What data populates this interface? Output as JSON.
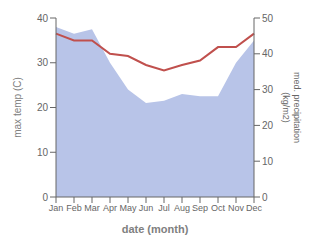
{
  "chart_data": {
    "type": "line",
    "categories": [
      "Jan",
      "Feb",
      "Mar",
      "Apr",
      "May",
      "Jun",
      "Jul",
      "Aug",
      "Sep",
      "Oct",
      "Nov",
      "Dec"
    ],
    "series": [
      {
        "type": "area",
        "color": "#b8c4e8",
        "values": [
          38.0,
          36.5,
          37.5,
          30.0,
          24.0,
          21.0,
          21.5,
          23.0,
          22.5,
          22.5,
          30.0,
          35.0
        ]
      },
      {
        "type": "line",
        "color": "#c0504d",
        "values": [
          36.5,
          35.0,
          35.0,
          32.0,
          31.5,
          29.5,
          28.3,
          29.5,
          30.5,
          33.5,
          33.5,
          36.5
        ]
      }
    ],
    "xlabel": "date (month)",
    "ylabel": "max temp (C)",
    "y2label": "med. precipitation\n(kg/m2)",
    "ylim": [
      0,
      40
    ],
    "yticks": [
      0,
      10,
      20,
      30,
      40
    ],
    "y2lim": [
      0,
      50
    ],
    "y2ticks": [
      0,
      10,
      20,
      30,
      40,
      50
    ],
    "grid": false
  }
}
